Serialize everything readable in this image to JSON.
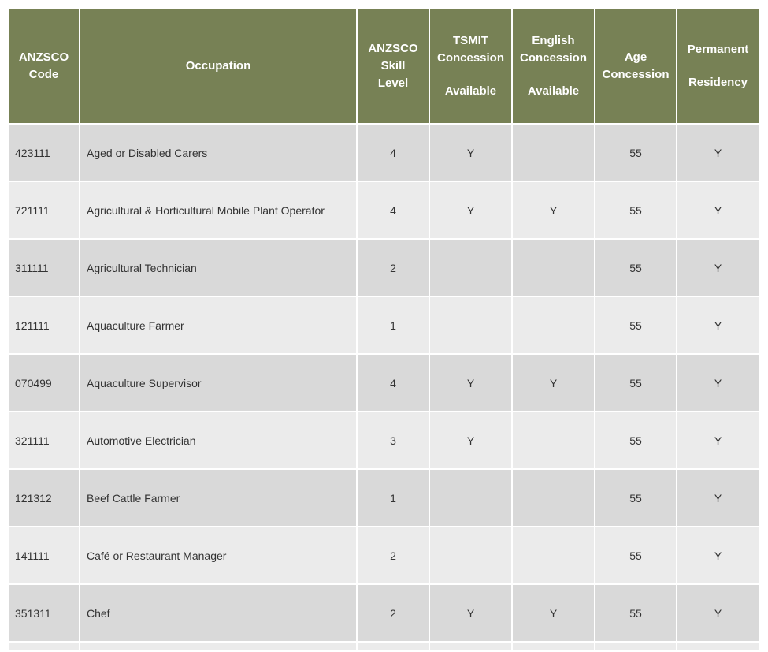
{
  "header_color": "#778155",
  "row_colors": [
    "#d9d9d9",
    "#ebebeb"
  ],
  "columns": [
    {
      "lines": [
        "ANZSCO",
        "Code"
      ]
    },
    {
      "lines": [
        "Occupation"
      ]
    },
    {
      "lines": [
        "ANZSCO",
        "Skill",
        "Level"
      ]
    },
    {
      "lines": [
        "TSMIT",
        "Concession",
        "",
        "Available"
      ]
    },
    {
      "lines": [
        "English",
        "Concession",
        "",
        "Available"
      ]
    },
    {
      "lines": [
        "Age",
        "Concession"
      ]
    },
    {
      "lines": [
        "Permanent",
        "",
        "Residency"
      ]
    }
  ],
  "rows": [
    [
      "423111",
      "Aged or Disabled Carers",
      "4",
      "Y",
      "",
      "55",
      "Y"
    ],
    [
      "721111",
      "Agricultural & Horticultural Mobile Plant Operator",
      "4",
      "Y",
      "Y",
      "55",
      "Y"
    ],
    [
      "311111",
      "Agricultural Technician",
      "2",
      "",
      "",
      "55",
      "Y"
    ],
    [
      "121111",
      "Aquaculture Farmer",
      "1",
      "",
      "",
      "55",
      "Y"
    ],
    [
      "070499",
      "Aquaculture Supervisor",
      "4",
      "Y",
      "Y",
      "55",
      "Y"
    ],
    [
      "321111",
      "Automotive Electrician",
      "3",
      "Y",
      "",
      "55",
      "Y"
    ],
    [
      "121312",
      "Beef Cattle Farmer",
      "1",
      "",
      "",
      "55",
      "Y"
    ],
    [
      "141111",
      "Café or Restaurant Manager",
      "2",
      "",
      "",
      "55",
      "Y"
    ],
    [
      "351311",
      "Chef",
      "2",
      "Y",
      "Y",
      "55",
      "Y"
    ]
  ]
}
